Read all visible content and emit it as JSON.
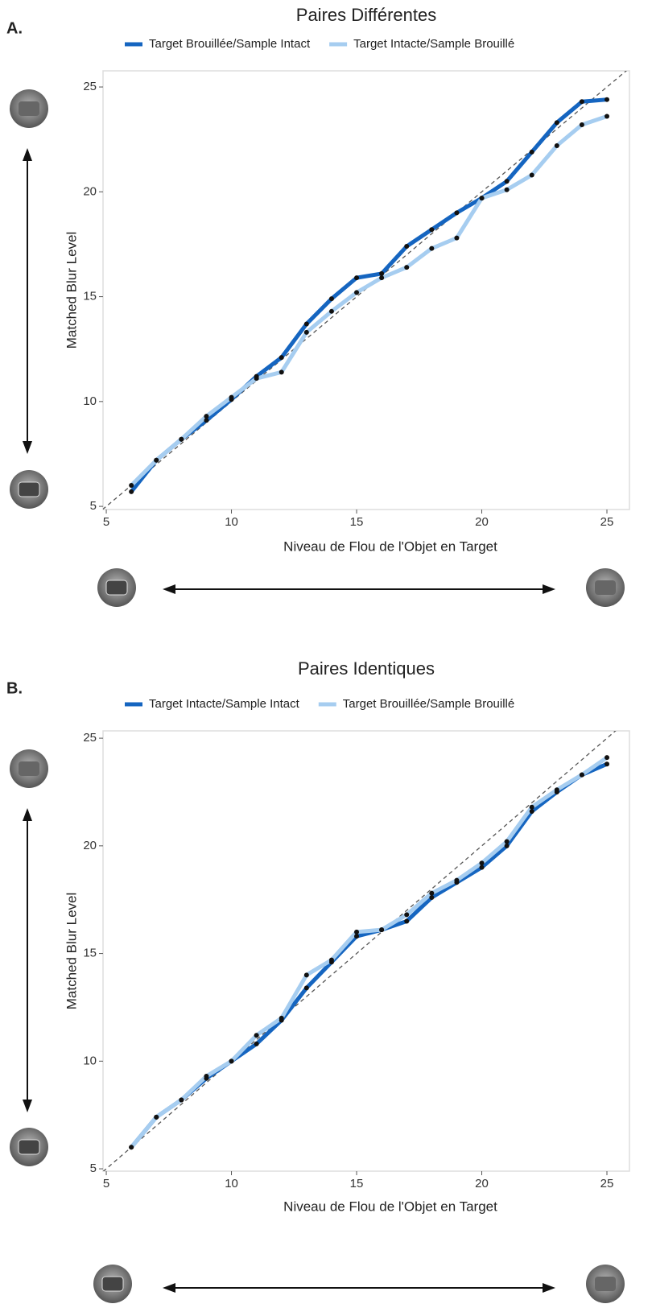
{
  "chart_data": [
    {
      "type": "line",
      "panel_label": "A.",
      "title": "Paires Différentes",
      "x_label": "Niveau de Flou de l'Objet en Target",
      "y_label": "Matched Blur Level",
      "x": [
        6,
        7,
        8,
        9,
        10,
        11,
        12,
        13,
        14,
        15,
        16,
        17,
        18,
        19,
        20,
        21,
        22,
        23,
        24,
        25
      ],
      "series": [
        {
          "name": "Target Brouillée/Sample Intact",
          "color": "#1565c0",
          "values": [
            5.7,
            7.2,
            8.2,
            9.1,
            10.1,
            11.2,
            12.1,
            13.7,
            14.9,
            15.9,
            16.1,
            17.4,
            18.2,
            19.0,
            19.7,
            20.5,
            21.9,
            23.3,
            24.3,
            24.4
          ]
        },
        {
          "name": "Target Intacte/Sample Brouillé",
          "color": "#a6cdf0",
          "values": [
            6.0,
            7.2,
            8.2,
            9.3,
            10.2,
            11.1,
            11.4,
            13.3,
            14.3,
            15.2,
            15.9,
            16.4,
            17.3,
            17.8,
            19.7,
            20.1,
            20.8,
            22.2,
            23.2,
            23.6
          ]
        }
      ],
      "xlim": [
        4.87,
        25.9
      ],
      "ylim": [
        4.85,
        25.77
      ],
      "xticks": [
        5,
        10,
        15,
        20,
        25
      ],
      "yticks": [
        5,
        10,
        15,
        20,
        25
      ],
      "identity_line": true,
      "legend": "top",
      "grid": false
    },
    {
      "type": "line",
      "panel_label": "B.",
      "title": "Paires Identiques",
      "x_label": "Niveau de Flou de l'Objet en Target",
      "y_label": "Matched Blur Level",
      "x": [
        6,
        7,
        8,
        9,
        10,
        11,
        12,
        13,
        14,
        15,
        16,
        17,
        18,
        19,
        20,
        21,
        22,
        23,
        24,
        25
      ],
      "series": [
        {
          "name": "Target Intacte/Sample Intact",
          "color": "#1565c0",
          "values": [
            6.0,
            7.4,
            8.2,
            9.2,
            10.0,
            10.8,
            11.9,
            13.4,
            14.6,
            15.8,
            16.1,
            16.5,
            17.6,
            18.3,
            19.0,
            20.0,
            21.6,
            22.5,
            23.3,
            23.8
          ]
        },
        {
          "name": "Target Brouillée/Sample Brouillé",
          "color": "#a6cdf0",
          "values": [
            6.0,
            7.4,
            8.2,
            9.3,
            10.0,
            11.2,
            12.0,
            14.0,
            14.7,
            16.0,
            16.1,
            16.8,
            17.8,
            18.4,
            19.2,
            20.2,
            21.8,
            22.6,
            23.3,
            24.1
          ]
        }
      ],
      "xlim": [
        4.87,
        25.9
      ],
      "ylim": [
        4.89,
        25.34
      ],
      "xticks": [
        5,
        10,
        15,
        20,
        25
      ],
      "yticks": [
        5,
        10,
        15,
        20,
        25
      ],
      "identity_line": true,
      "legend": "top",
      "grid": false
    }
  ]
}
